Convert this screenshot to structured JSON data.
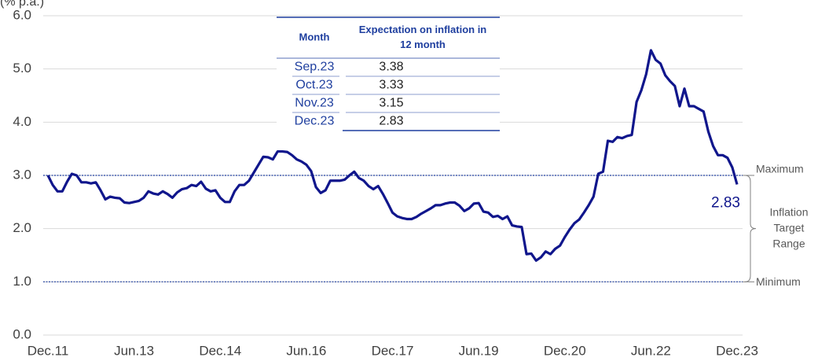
{
  "chart_data": {
    "type": "line",
    "y_label": "(% p.a.)",
    "categories": [
      "Dec.11",
      null,
      null,
      null,
      null,
      null,
      null,
      null,
      null,
      null,
      null,
      null,
      null,
      null,
      null,
      null,
      null,
      null,
      "Jun.13",
      null,
      null,
      null,
      null,
      null,
      null,
      null,
      null,
      null,
      null,
      null,
      null,
      null,
      null,
      null,
      null,
      null,
      "Dec.14",
      null,
      null,
      null,
      null,
      null,
      null,
      null,
      null,
      null,
      null,
      null,
      null,
      null,
      null,
      null,
      null,
      null,
      "Jun.16",
      null,
      null,
      null,
      null,
      null,
      null,
      null,
      null,
      null,
      null,
      null,
      null,
      null,
      null,
      null,
      null,
      null,
      "Dec.17",
      null,
      null,
      null,
      null,
      null,
      null,
      null,
      null,
      null,
      null,
      null,
      null,
      null,
      null,
      null,
      null,
      null,
      "Jun.19",
      null,
      null,
      null,
      null,
      null,
      null,
      null,
      null,
      null,
      null,
      null,
      null,
      null,
      null,
      null,
      null,
      null,
      "Dec.20",
      null,
      null,
      null,
      null,
      null,
      null,
      null,
      null,
      null,
      null,
      null,
      null,
      null,
      null,
      null,
      null,
      null,
      "Jun.22",
      null,
      null,
      null,
      null,
      null,
      null,
      null,
      null,
      null,
      null,
      null,
      null,
      null,
      null,
      null,
      null,
      null,
      "Dec.23"
    ],
    "values": [
      3.0,
      2.82,
      2.7,
      2.7,
      2.88,
      3.03,
      3.0,
      2.87,
      2.87,
      2.85,
      2.87,
      2.72,
      2.55,
      2.6,
      2.58,
      2.57,
      2.49,
      2.48,
      2.5,
      2.52,
      2.58,
      2.7,
      2.66,
      2.64,
      2.7,
      2.65,
      2.58,
      2.68,
      2.74,
      2.76,
      2.82,
      2.8,
      2.88,
      2.75,
      2.7,
      2.72,
      2.58,
      2.5,
      2.5,
      2.7,
      2.82,
      2.82,
      2.9,
      3.05,
      3.2,
      3.35,
      3.34,
      3.3,
      3.45,
      3.45,
      3.44,
      3.38,
      3.3,
      3.26,
      3.2,
      3.08,
      2.78,
      2.67,
      2.72,
      2.9,
      2.9,
      2.9,
      2.92,
      3.0,
      3.07,
      2.95,
      2.9,
      2.8,
      2.74,
      2.8,
      2.65,
      2.48,
      2.3,
      2.23,
      2.2,
      2.18,
      2.18,
      2.22,
      2.28,
      2.33,
      2.38,
      2.44,
      2.44,
      2.47,
      2.49,
      2.49,
      2.43,
      2.33,
      2.38,
      2.47,
      2.48,
      2.32,
      2.3,
      2.22,
      2.24,
      2.18,
      2.23,
      2.06,
      2.04,
      2.03,
      1.52,
      1.53,
      1.4,
      1.46,
      1.57,
      1.52,
      1.62,
      1.68,
      1.84,
      1.98,
      2.1,
      2.17,
      2.3,
      2.44,
      2.6,
      3.03,
      3.07,
      3.65,
      3.63,
      3.72,
      3.7,
      3.74,
      3.76,
      4.38,
      4.6,
      4.9,
      5.35,
      5.17,
      5.1,
      4.88,
      4.77,
      4.68,
      4.3,
      4.63,
      4.3,
      4.3,
      4.25,
      4.2,
      3.82,
      3.55,
      3.38,
      3.38,
      3.33,
      3.15,
      2.83
    ],
    "color": "#10168c",
    "ylim": [
      0,
      6
    ],
    "yticks": [
      {
        "value": 0,
        "label": "0.0"
      },
      {
        "value": 1,
        "label": "1.0"
      },
      {
        "value": 2,
        "label": "2.0"
      },
      {
        "value": 3,
        "label": "3.0"
      },
      {
        "value": 4,
        "label": "4.0"
      },
      {
        "value": 5,
        "label": "5.0"
      },
      {
        "value": 6,
        "label": "6.0"
      }
    ],
    "grid": true,
    "reference_lines": [
      {
        "value": 3,
        "label": "Maximum"
      },
      {
        "value": 1,
        "label": "Minimum"
      }
    ],
    "range_label": [
      "Inflation",
      "Target",
      "Range"
    ],
    "table": {
      "columns": [
        "Month",
        "Expectation on inflation in 12 month"
      ],
      "rows": [
        [
          "Sep.23",
          3.38
        ],
        [
          "Oct.23",
          3.33
        ],
        [
          "Nov.23",
          3.15
        ],
        [
          "Dec.23",
          2.83
        ]
      ]
    }
  }
}
